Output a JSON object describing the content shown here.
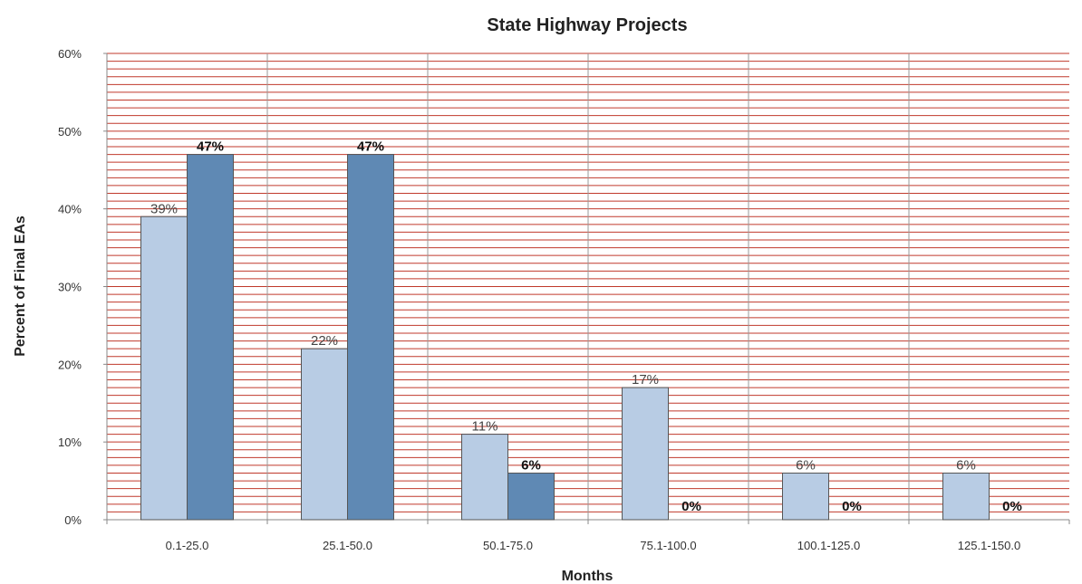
{
  "chart_data": {
    "type": "bar",
    "title": "State Highway Projects",
    "xlabel": "Months",
    "ylabel": "Percent of Final EAs",
    "categories": [
      "0.1-25.0",
      "25.1-50.0",
      "50.1-75.0",
      "75.1-100.0",
      "100.1-125.0",
      "125.1-150.0"
    ],
    "series": [
      {
        "values": [
          39,
          22,
          11,
          17,
          6,
          6
        ],
        "labels": [
          "39%",
          "22%",
          "11%",
          "17%",
          "6%",
          "6%"
        ],
        "color": "#b8cce4"
      },
      {
        "values": [
          47,
          47,
          6,
          0,
          0,
          0
        ],
        "labels": [
          "47%",
          "47%",
          "6%",
          "0%",
          "0%",
          "0%"
        ],
        "color": "#5f89b4"
      }
    ],
    "ylim": [
      0,
      60
    ],
    "yticks": [
      "0%",
      "10%",
      "20%",
      "30%",
      "40%",
      "50%",
      "60%"
    ],
    "grid": true,
    "grid_color": "#c0392b",
    "legend": "none"
  }
}
